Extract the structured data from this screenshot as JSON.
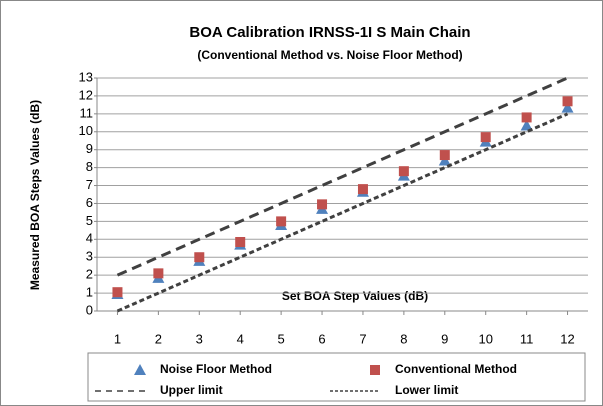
{
  "chart_data": {
    "type": "line",
    "title": "BOA Calibration IRNSS-1I S Main Chain",
    "subtitle": "(Conventional  Method vs. Noise Floor Method)",
    "x_label": "Set BOA Step Values (dB)",
    "y_label": "Measured BOA Steps Values (dB)",
    "x": [
      1,
      2,
      3,
      4,
      5,
      6,
      7,
      8,
      9,
      10,
      11,
      12
    ],
    "xlim": [
      0.5,
      12.5
    ],
    "xticks": [
      1,
      2,
      3,
      4,
      5,
      6,
      7,
      8,
      9,
      10,
      11,
      12
    ],
    "ylim": [
      0,
      13
    ],
    "yticks": [
      0,
      1,
      2,
      3,
      4,
      5,
      6,
      7,
      8,
      9,
      10,
      11,
      12,
      13
    ],
    "grid": true,
    "series": [
      {
        "name": "Noise Floor Method",
        "color": "#4f81bd",
        "marker": "triangle",
        "values": [
          0.95,
          1.85,
          2.8,
          3.7,
          4.8,
          5.7,
          6.65,
          7.55,
          8.4,
          9.45,
          10.35,
          11.35
        ]
      },
      {
        "name": "Conventional Method",
        "color": "#c0504d",
        "marker": "square",
        "values": [
          1.05,
          2.1,
          3.0,
          3.85,
          5.0,
          5.95,
          6.8,
          7.8,
          8.7,
          9.7,
          10.8,
          11.7
        ]
      },
      {
        "name": "Upper limit",
        "color": "#404040",
        "dash": "dashed",
        "values": [
          2,
          3,
          4,
          5,
          6,
          7,
          8,
          9,
          10,
          11,
          12,
          13
        ]
      },
      {
        "name": "Lower limit",
        "color": "#404040",
        "dash": "dashed-fine",
        "values": [
          0,
          1,
          2,
          3,
          4,
          5,
          6,
          7,
          8,
          9,
          10,
          11
        ]
      }
    ]
  }
}
